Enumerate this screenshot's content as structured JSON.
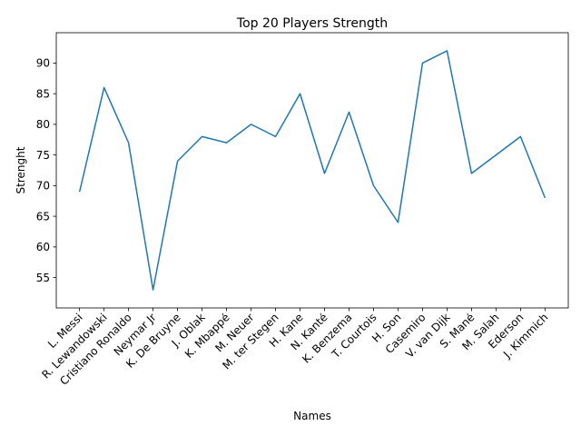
{
  "chart_data": {
    "type": "line",
    "title": "Top 20 Players Strength",
    "xlabel": "Names",
    "ylabel": "Strenght",
    "categories": [
      "L. Messi",
      "R. Lewandowski",
      "Cristiano Ronaldo",
      "Neymar Jr",
      "K. De Bruyne",
      "J. Oblak",
      "K. Mbappé",
      "M. Neuer",
      "M. ter Stegen",
      "H. Kane",
      "N. Kanté",
      "K. Benzema",
      "T. Courtois",
      "H. Son",
      "Casemiro",
      "V. van Dijk",
      "S. Mané",
      "M. Salah",
      "Ederson",
      "J. Kimmich"
    ],
    "series": [
      {
        "values": [
          69,
          86,
          77,
          53,
          74,
          78,
          77,
          80,
          78,
          85,
          72,
          82,
          70,
          64,
          90,
          92,
          72,
          75,
          78,
          68
        ]
      }
    ],
    "yticks": [
      55,
      60,
      65,
      70,
      75,
      80,
      85,
      90
    ],
    "ylim": [
      50.05,
      94.95
    ],
    "xlim": [
      -0.95,
      19.95
    ],
    "grid": false,
    "line_color": "#1f77b4"
  }
}
